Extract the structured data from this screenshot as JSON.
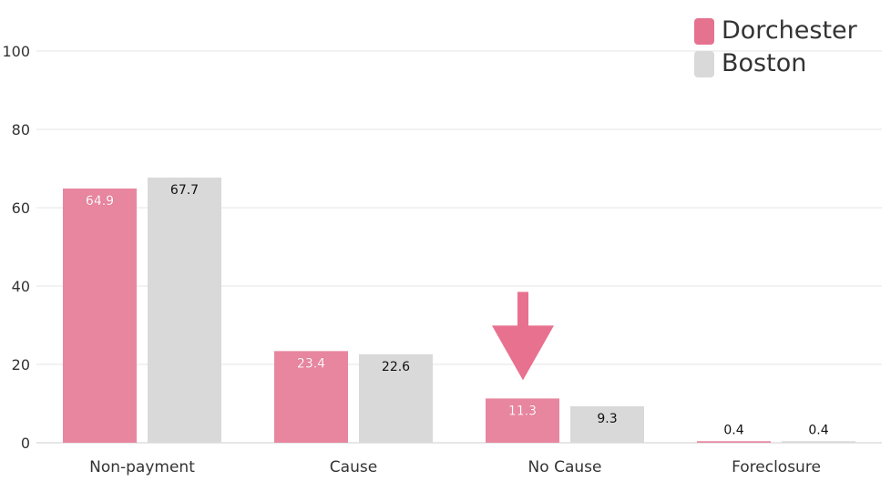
{
  "chart_data": {
    "type": "bar",
    "categories": [
      "Non-payment",
      "Cause",
      "No Cause",
      "Foreclosure"
    ],
    "series": [
      {
        "name": "Dorchester",
        "color": "#e8869f",
        "values": [
          64.9,
          23.4,
          11.3,
          0.4
        ]
      },
      {
        "name": "Boston",
        "color": "#d9d9d9",
        "values": [
          67.7,
          22.6,
          9.3,
          0.4
        ]
      }
    ],
    "ylim": [
      0,
      100
    ],
    "yticks": [
      0,
      20,
      40,
      60,
      80,
      100
    ],
    "grid": true,
    "legend_position": "top-right",
    "annotation": {
      "type": "arrow",
      "points_to": "No Cause",
      "series": "Dorchester",
      "color": "#e8718f"
    },
    "colors": {
      "legend_dorchester": "#e5728f",
      "value_label_dark": "#111111",
      "value_label_light": "#ffffff"
    }
  }
}
